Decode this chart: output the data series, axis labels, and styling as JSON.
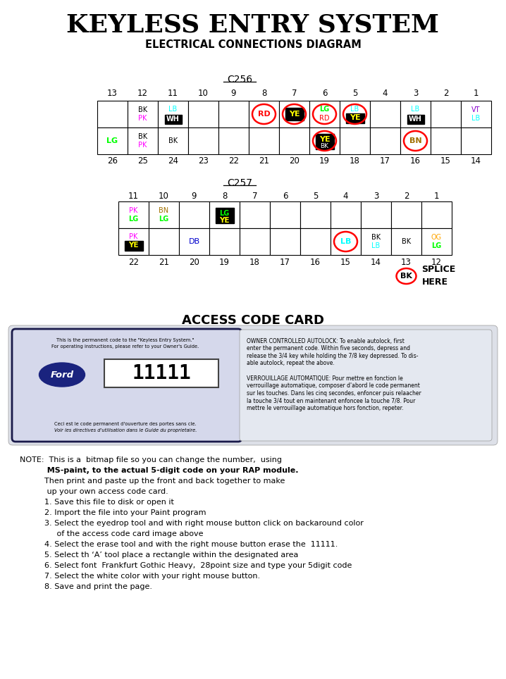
{
  "title": "KEYLESS ENTRY SYSTEM",
  "subtitle": "ELECTRICAL CONNECTIONS DIAGRAM",
  "bg_color": "#ffffff",
  "c256_label": "C256",
  "c257_label": "C257",
  "access_code_label": "ACCESS CODE CARD",
  "note_lines": [
    [
      "NOTE:  This is a  bitmap file so you can change the number,  using",
      false
    ],
    [
      "          MS-paint, to the actual 5-digit code on your RAP module.",
      true
    ],
    [
      "          Then print and paste up the front and back together to make",
      false
    ],
    [
      "           up your own access code card.",
      false
    ],
    [
      "          1. Save this file to disk or open it",
      false
    ],
    [
      "          2. Import the file into your Paint program",
      false
    ],
    [
      "          3. Select the eyedrop tool and with right mouse button click on backaround color",
      false
    ],
    [
      "               of the access code card image above",
      false
    ],
    [
      "          4. Select the erase tool and with the right mouse button erase the  11111.",
      false
    ],
    [
      "          5. Select th ‘A’ tool place a rectangle within the designated area",
      false
    ],
    [
      "          6. Select font  Frankfurt Gothic Heavy,  28point size and type your 5digit code",
      false
    ],
    [
      "          7. Select the white color with your right mouse button.",
      false
    ],
    [
      "          8. Save and print the page.",
      false
    ]
  ]
}
